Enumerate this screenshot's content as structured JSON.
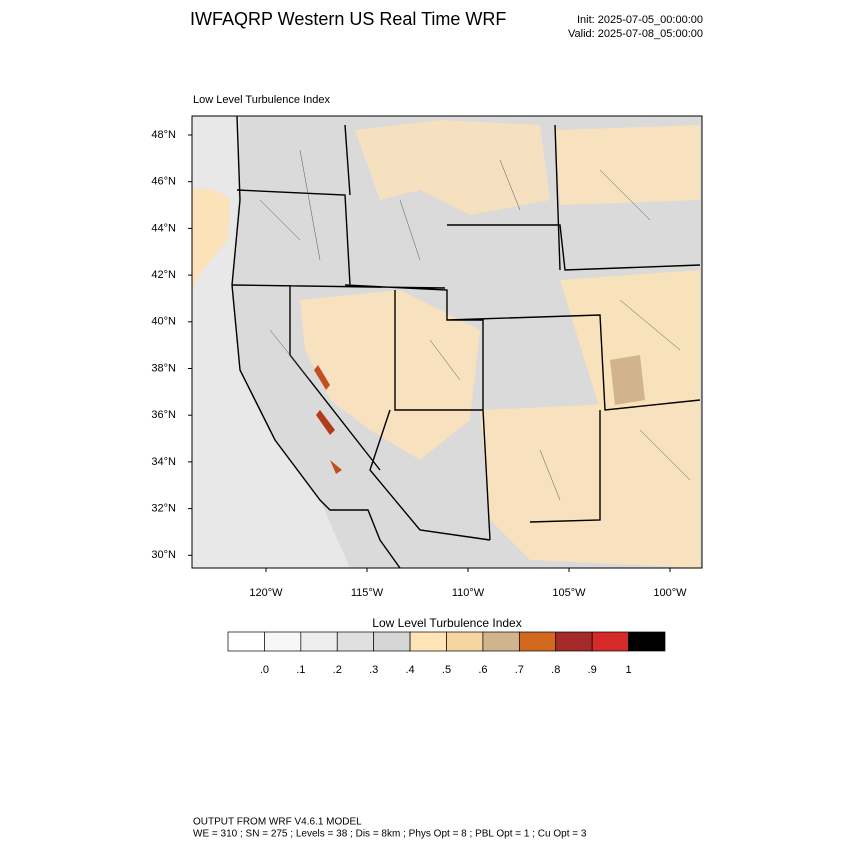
{
  "header": {
    "title": "IWFAQRP Western US Real Time WRF",
    "init": "Init: 2025-07-05_00:00:00",
    "valid": "Valid: 2025-07-08_05:00:00"
  },
  "map": {
    "title": "Low Level Turbulence Index",
    "lat_labels": [
      "48°N",
      "46°N",
      "44°N",
      "42°N",
      "40°N",
      "38°N",
      "36°N",
      "34°N",
      "32°N",
      "30°N"
    ],
    "lon_labels": [
      "120°W",
      "115°W",
      "110°W",
      "105°W",
      "100°W"
    ]
  },
  "colorbar": {
    "title": "Low Level Turbulence Index",
    "colors": [
      "#ffffff",
      "#f7f7f7",
      "#eeeeee",
      "#e0e0e0",
      "#d6d6d6",
      "#ffe4b5",
      "#f5d5a0",
      "#d2b48c",
      "#d2691e",
      "#a52a2a",
      "#d42a2a",
      "#000000"
    ],
    "labels": [
      ".0",
      ".1",
      ".2",
      ".3",
      ".4",
      ".5",
      ".6",
      ".7",
      ".8",
      ".9",
      "1"
    ]
  },
  "footer": {
    "line1": "OUTPUT FROM WRF V4.6.1 MODEL",
    "line2": "WE = 310 ; SN = 275 ; Levels = 38 ; Dis = 8km ; Phys Opt = 8 ; PBL Opt = 1 ; Cu Opt = 3"
  }
}
